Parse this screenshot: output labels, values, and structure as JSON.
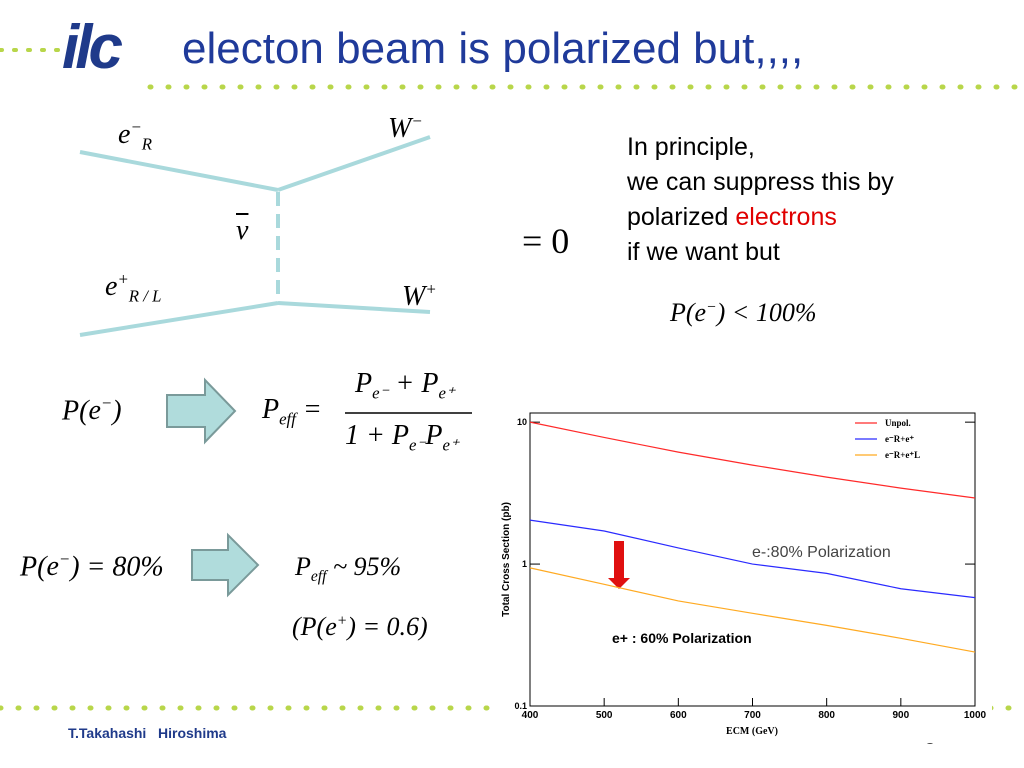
{
  "logo": "ilc",
  "header": {
    "title": "electon beam is polarized but,,,,"
  },
  "diagram": {
    "e_minus": {
      "b": "e",
      "sub": "R",
      "sup": "−"
    },
    "w_minus": {
      "b": "W",
      "sup": "−"
    },
    "nubar": "ν",
    "e_plus": {
      "b": "e",
      "sub": "R / L",
      "sup": "+"
    },
    "w_plus": {
      "b": "W",
      "sup": "+"
    },
    "equals": "= 0"
  },
  "text": {
    "lines": [
      "In principle,",
      "we can suppress this by",
      "polarized",
      "if we want but"
    ],
    "highlight": "electrons"
  },
  "formulas": {
    "limit": [
      "P(",
      {
        "b": "e",
        "sup": "−"
      },
      ") < 100%"
    ],
    "pe": [
      "P(",
      {
        "b": "e",
        "sup": "−"
      },
      ")"
    ],
    "peff_lhs": [
      {
        "b": "P",
        "sub": "eff"
      },
      " ="
    ],
    "peff_num": [
      {
        "b": "P",
        "sub": "e⁻"
      },
      " + ",
      {
        "b": "P",
        "sub": "e⁺"
      }
    ],
    "peff_den": [
      "1 + ",
      {
        "b": "P",
        "sub": "e⁻"
      },
      {
        "b": "P",
        "sub": "e⁺"
      }
    ],
    "p80": [
      "P(",
      {
        "b": "e",
        "sup": "−"
      },
      ") = 80%"
    ],
    "p95": [
      {
        "b": "P",
        "sub": "eff"
      },
      " ~ 95%"
    ],
    "ppos": [
      "(P(",
      {
        "b": "e",
        "sup": "+"
      },
      ") = 0.6)"
    ]
  },
  "chart_data": {
    "type": "line",
    "x_label": "ECM (GeV)",
    "y_label": "Total Cross Section (pb)",
    "x": [
      400,
      500,
      600,
      700,
      800,
      900,
      1000
    ],
    "series": [
      {
        "name": "Unpol.",
        "color": "#ff2a2a",
        "values": [
          10,
          7.8,
          6.15,
          4.98,
          4.1,
          3.43,
          2.92
        ]
      },
      {
        "name": "e⁻R+e⁺",
        "color": "#2a2aff",
        "values": [
          2.04,
          1.71,
          1.3,
          1.0,
          0.86,
          0.67,
          0.58
        ]
      },
      {
        "name": "e⁻R+e⁺L",
        "color": "#ffaa22",
        "values": [
          0.94,
          0.72,
          0.55,
          0.45,
          0.37,
          0.3,
          0.24
        ]
      }
    ],
    "xlim": [
      400,
      1000
    ],
    "xticks": [
      400,
      500,
      600,
      700,
      800,
      900,
      1000
    ],
    "ylim": [
      0.1,
      11.6
    ],
    "yticks": [
      0.1,
      1,
      10
    ],
    "log_y": true,
    "grid": false,
    "legend": "upper right",
    "annotations": [
      "e-:80% Polarization",
      "e+ : 60% Polarization"
    ]
  },
  "footer": {
    "author": "T.Takahashi",
    "place": "Hiroshima",
    "page": "3"
  }
}
